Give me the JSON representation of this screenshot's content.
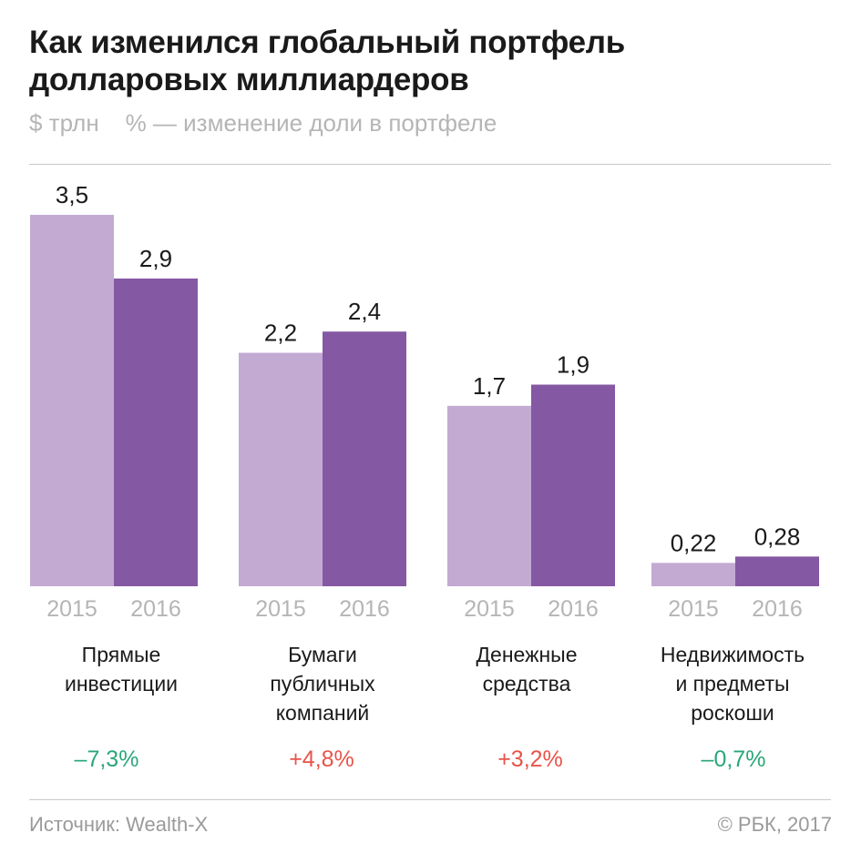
{
  "title": "Как изменился глобальный портфель долларовых миллиардеров",
  "subtitle": "$ трлн    % — изменение доли в портфеле",
  "chart_data": {
    "type": "bar",
    "categories": [
      "Прямые инвестиции",
      "Бумаги публичных компаний",
      "Денежные средства",
      "Недвижимость и предметы роскоши"
    ],
    "years": [
      "2015",
      "2016"
    ],
    "series": [
      {
        "values": [
          3.5,
          2.2,
          1.7,
          0.22
        ],
        "labels": [
          "3,5",
          "2,2",
          "1,7",
          "0,22"
        ],
        "color": "#c2aad3"
      },
      {
        "values": [
          2.9,
          2.4,
          1.9,
          0.28
        ],
        "labels": [
          "2,9",
          "2,4",
          "1,9",
          "0,28"
        ],
        "color": "#8558a3"
      }
    ],
    "changes": [
      "–7,3%",
      "+4,8%",
      "+3,2%",
      "–0,7%"
    ],
    "change_colors": [
      "#2aa779",
      "#e8544a",
      "#e8544a",
      "#2aa779"
    ],
    "ylim": [
      0,
      3.5
    ]
  },
  "categories_display": {
    "c0": "Прямые\nинвестиции",
    "c1": "Бумаги\nпубличных\nкомпаний",
    "c2": "Денежные\nсредства",
    "c3": "Недвижимость\nи предметы\nроскоши"
  },
  "changes": {
    "c0": "–7,3%",
    "c1": "+4,8%",
    "c2": "+3,2%",
    "c3": "–0,7%"
  },
  "footer": {
    "source": "Источник: Wealth-X",
    "copyright": "© РБК, 2017"
  },
  "colors": {
    "light": "#c2aad3",
    "dark": "#8558a3",
    "positive": "#e8544a",
    "negative": "#2aa779",
    "muted": "#b5b5b5"
  }
}
